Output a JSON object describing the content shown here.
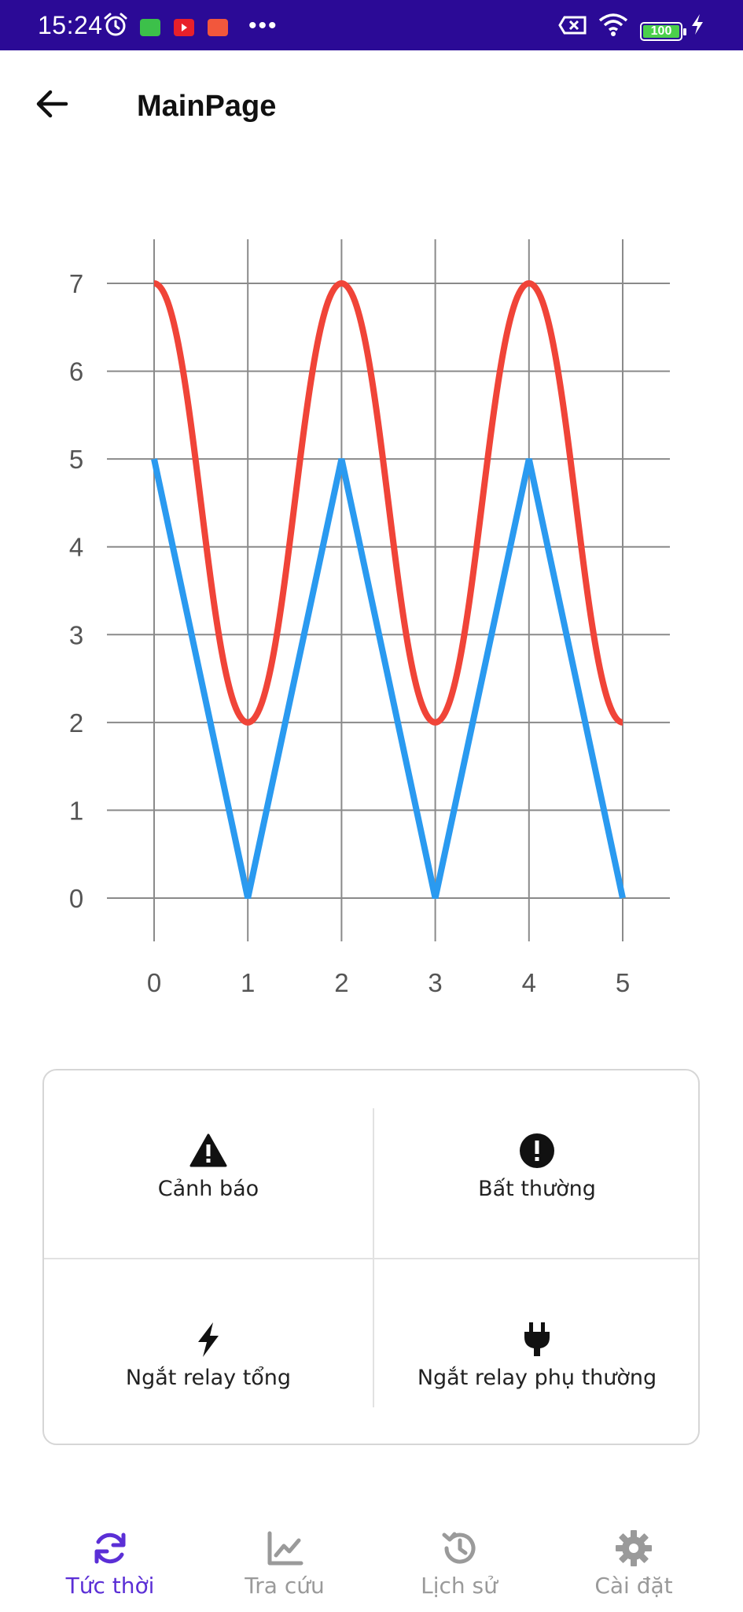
{
  "status_bar": {
    "time": "15:24",
    "battery": "100",
    "icons": [
      "alarm-icon",
      "wechat-icon",
      "youtube-icon",
      "shopee-icon",
      "more-icon",
      "sim-off-icon",
      "wifi-icon",
      "battery-icon",
      "charging-icon"
    ],
    "colors": {
      "background": "#2b0a96"
    }
  },
  "app_bar": {
    "title": "MainPage",
    "back_icon": "arrow-left-icon"
  },
  "chart_data": {
    "type": "line",
    "x": [
      0,
      1,
      2,
      3,
      4,
      5
    ],
    "series": [
      {
        "color": "#f04438",
        "values": [
          7,
          2,
          7,
          2,
          7,
          2
        ],
        "curve": "smooth"
      },
      {
        "color": "#2a9af0",
        "values": [
          5,
          0,
          5,
          0,
          5,
          0
        ],
        "curve": "linear"
      }
    ],
    "xticks": [
      "0",
      "1",
      "2",
      "3",
      "4",
      "5"
    ],
    "yticks": [
      "0",
      "1",
      "2",
      "3",
      "4",
      "5",
      "6",
      "7"
    ],
    "xlim": [
      0,
      5
    ],
    "ylim": [
      0,
      7
    ],
    "grid": true,
    "title": "",
    "xlabel": "",
    "ylabel": ""
  },
  "actions": [
    {
      "label": "Cảnh báo",
      "icon": "warning-icon"
    },
    {
      "label": "Bất thường",
      "icon": "exclamation-circle-icon"
    },
    {
      "label": "Ngắt relay tổng",
      "icon": "lightning-icon"
    },
    {
      "label": "Ngắt relay phụ thường",
      "icon": "plug-icon"
    }
  ],
  "bottom_nav": {
    "active_index": 0,
    "active_color": "#5b2fd6",
    "items": [
      {
        "label": "Tức thời",
        "icon": "refresh-icon"
      },
      {
        "label": "Tra cứu",
        "icon": "line-chart-icon"
      },
      {
        "label": "Lịch sử",
        "icon": "history-icon"
      },
      {
        "label": "Cài đặt",
        "icon": "gear-icon"
      }
    ]
  }
}
